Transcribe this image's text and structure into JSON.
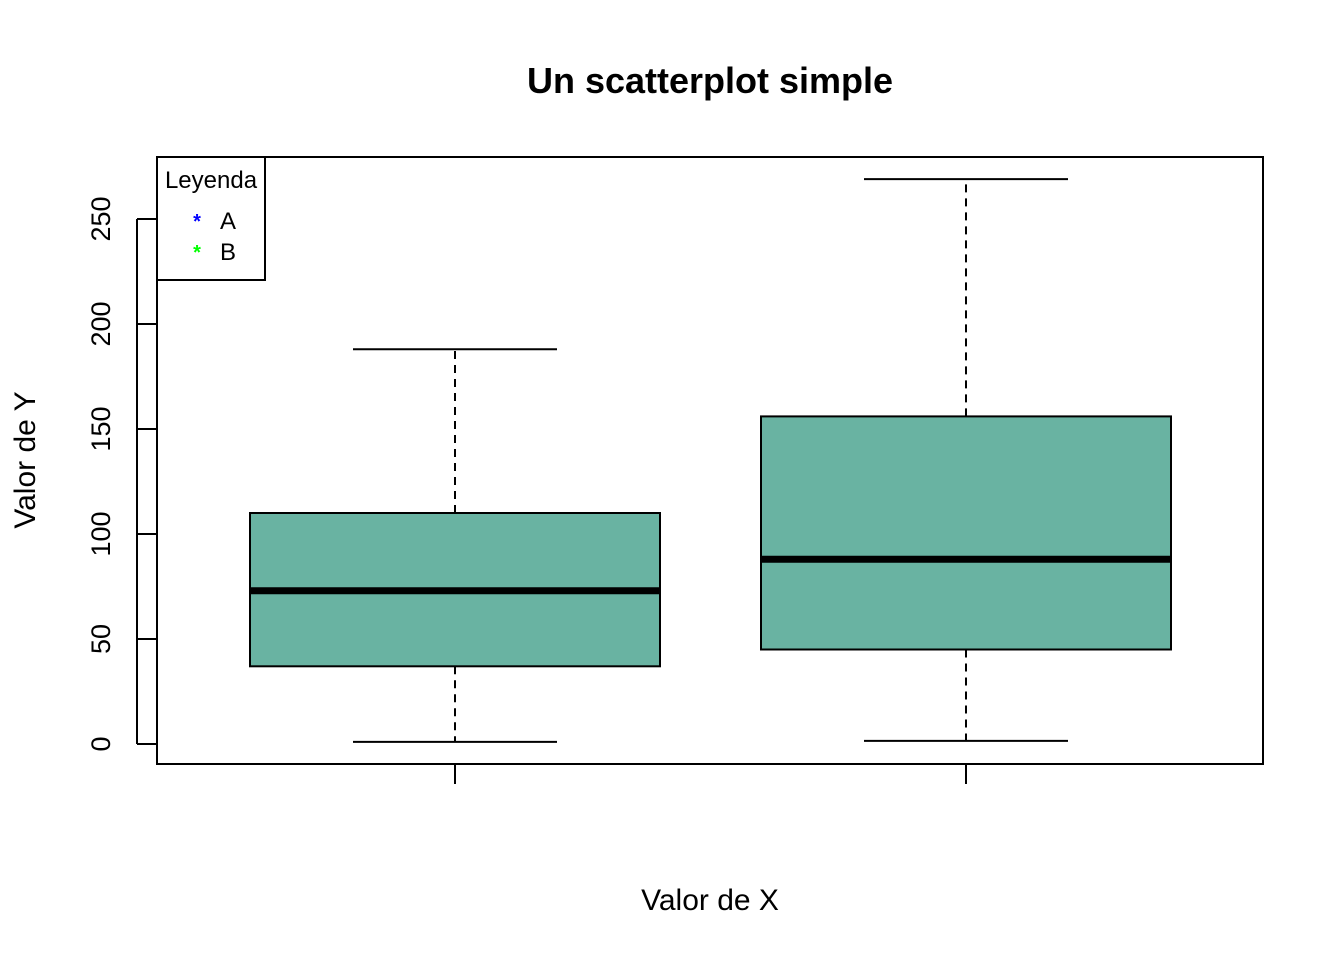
{
  "chart_data": {
    "type": "boxplot",
    "title": "Un scatterplot simple",
    "xlabel": "Valor de X",
    "ylabel": "Valor de Y",
    "ylim": [
      -10,
      280
    ],
    "yticks": [
      0,
      50,
      100,
      150,
      200,
      250
    ],
    "ytick_labels": [
      "0",
      "50",
      "100",
      "150",
      "200",
      "250"
    ],
    "box_color": "#69b3a2",
    "boxes": [
      {
        "min": 1,
        "q1": 37,
        "median": 73,
        "q3": 110,
        "max": 188
      },
      {
        "min": 1.5,
        "q1": 45,
        "median": 88,
        "q3": 156,
        "max": 269
      }
    ],
    "legend": {
      "title": "Leyenda",
      "position": "top-left",
      "entries": [
        {
          "label": "A",
          "color": "#0000ff",
          "symbol": "*"
        },
        {
          "label": "B",
          "color": "#00ff00",
          "symbol": "*"
        }
      ]
    }
  }
}
